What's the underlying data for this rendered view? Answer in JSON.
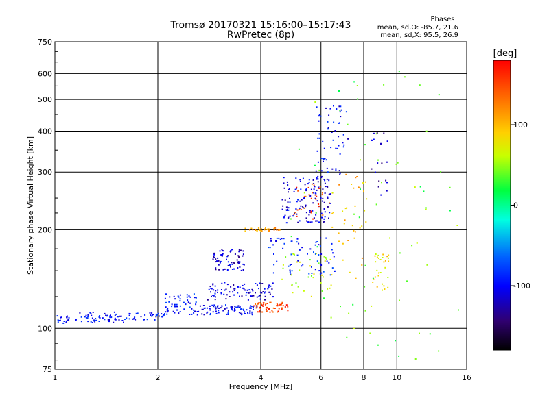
{
  "chart_data": {
    "type": "scatter",
    "title": "Tromsø 20170321 15:16:00–15:17:43",
    "subtitle": "RwPretec (8p)",
    "xlabel": "Frequency [MHz]",
    "ylabel": "Stationary phase Virtual Height [km]",
    "x_scale": "log",
    "y_scale": "log",
    "xlim": [
      1,
      16
    ],
    "ylim": [
      75,
      750
    ],
    "x_ticks": [
      "1",
      "2",
      "4",
      "6",
      "8",
      "10",
      "16"
    ],
    "y_ticks": [
      "750",
      "600",
      "500",
      "400",
      "300",
      "200",
      "100",
      "75"
    ],
    "grid": true,
    "stats": {
      "header": "Phases",
      "line_o": "mean, sd,O:  -85.7, 21.6",
      "line_x": "mean, sd,X:  95.5, 26.9"
    },
    "colorbar": {
      "label": "[deg]",
      "min": -180,
      "max": 180,
      "ticks": [
        "100",
        "0",
        "-100"
      ],
      "colormap": "rainbow"
    },
    "clusters": [
      {
        "f_range": [
          1.0,
          1.1
        ],
        "h_range": [
          103,
          110
        ],
        "phase": -95,
        "n": 20
      },
      {
        "f_range": [
          1.15,
          1.6
        ],
        "h_range": [
          104,
          112
        ],
        "phase": -100,
        "n": 55
      },
      {
        "f_range": [
          1.6,
          2.1
        ],
        "h_range": [
          106,
          112
        ],
        "phase": -95,
        "n": 40
      },
      {
        "f_range": [
          2.1,
          2.6
        ],
        "h_range": [
          110,
          128
        ],
        "phase": -90,
        "n": 55
      },
      {
        "f_range": [
          2.6,
          3.9
        ],
        "h_range": [
          110,
          118
        ],
        "phase": -100,
        "n": 90
      },
      {
        "f_range": [
          2.8,
          4.4
        ],
        "h_range": [
          122,
          138
        ],
        "phase": -110,
        "n": 90
      },
      {
        "f_range": [
          2.9,
          3.6
        ],
        "h_range": [
          150,
          175
        ],
        "phase": -115,
        "n": 70
      },
      {
        "f_range": [
          3.8,
          4.8
        ],
        "h_range": [
          112,
          120
        ],
        "phase": 150,
        "n": 60
      },
      {
        "f_range": [
          3.6,
          4.6
        ],
        "h_range": [
          198,
          203
        ],
        "phase": 110,
        "n": 30
      },
      {
        "f_range": [
          4.6,
          6.4
        ],
        "h_range": [
          210,
          290
        ],
        "phase": -110,
        "n": 130
      },
      {
        "f_range": [
          5.0,
          6.2
        ],
        "h_range": [
          215,
          280
        ],
        "phase": 150,
        "n": 30
      },
      {
        "f_range": [
          5.8,
          7.2
        ],
        "h_range": [
          290,
          480
        ],
        "phase": -100,
        "n": 60
      },
      {
        "f_range": [
          4.2,
          6.6
        ],
        "h_range": [
          145,
          190
        ],
        "phase": -90,
        "n": 70
      },
      {
        "f_range": [
          4.5,
          6.5
        ],
        "h_range": [
          125,
          170
        ],
        "phase": 60,
        "n": 40
      },
      {
        "f_range": [
          6.3,
          8.2
        ],
        "h_range": [
          140,
          300
        ],
        "phase": 100,
        "n": 40
      },
      {
        "f_range": [
          8.5,
          9.5
        ],
        "h_range": [
          130,
          170
        ],
        "phase": 80,
        "n": 30
      },
      {
        "f_range": [
          8.3,
          9.4
        ],
        "h_range": [
          250,
          400
        ],
        "phase": -120,
        "n": 20
      },
      {
        "f_range": [
          4.8,
          15.5
        ],
        "h_range": [
          80,
          620
        ],
        "phase": 40,
        "n": 70
      }
    ]
  }
}
